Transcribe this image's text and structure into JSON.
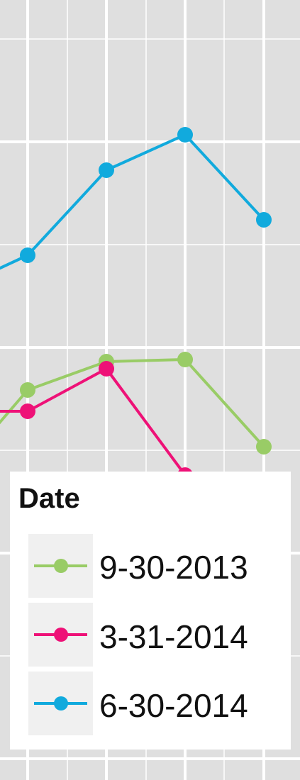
{
  "chart_data": {
    "type": "line",
    "title": "",
    "xlabel": "",
    "ylabel": "",
    "grid": true,
    "legend_position": "bottom-right",
    "legend_title": "Date",
    "x": [
      0,
      1,
      2,
      3,
      4
    ],
    "ylim": [
      0,
      100
    ],
    "series": [
      {
        "name": "9-30-2013",
        "color": "#99cc66",
        "values": [
          null,
          55,
          59,
          59.3,
          47
        ]
      },
      {
        "name": "3-31-2014",
        "color": "#ee1177",
        "values": [
          null,
          52,
          58,
          43,
          35
        ]
      },
      {
        "name": "6-30-2014",
        "color": "#11aadd",
        "values": [
          null,
          74,
          86,
          91,
          79
        ]
      }
    ],
    "partial_left_values": [
      50,
      52,
      72
    ]
  },
  "colors": {
    "panel_background": "#dfdfdf",
    "grid": "#ffffff",
    "legend_background": "#ffffff",
    "legend_key_background": "#f0f0f0"
  }
}
